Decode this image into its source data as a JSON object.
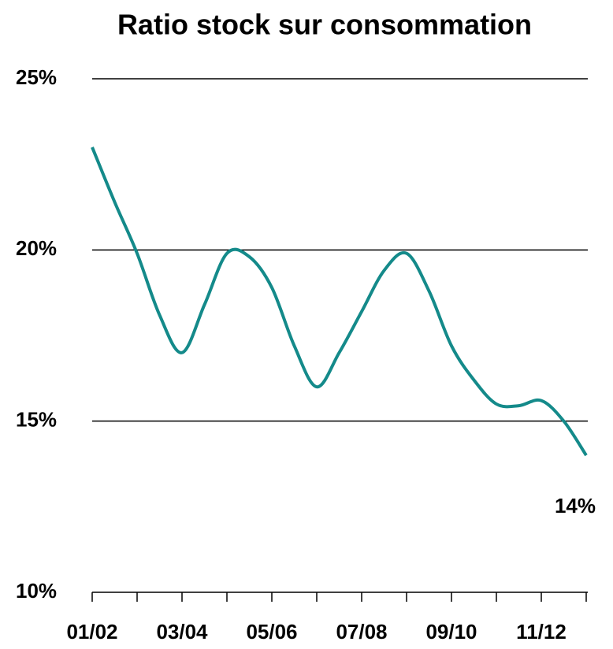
{
  "chart_data": {
    "type": "line",
    "title": "Ratio stock sur consommation",
    "categories": [
      "01/02",
      null,
      null,
      null,
      "03/04",
      null,
      null,
      null,
      "05/06",
      null,
      null,
      null,
      "07/08",
      null,
      null,
      null,
      "09/10",
      null,
      null,
      null,
      "11/12",
      null,
      null
    ],
    "series": [
      {
        "name": "Ratio stock sur consommation",
        "color": "#148a8a",
        "values": [
          23.0,
          21.4,
          19.9,
          18.1,
          17.0,
          18.4,
          19.9,
          19.8,
          18.9,
          17.2,
          16.0,
          17.0,
          18.2,
          19.4,
          19.9,
          18.8,
          17.2,
          16.2,
          15.5,
          15.45,
          15.6,
          15.0,
          14.0
        ],
        "value_labels": [
          null,
          null,
          null,
          null,
          null,
          null,
          null,
          null,
          null,
          null,
          null,
          null,
          null,
          null,
          null,
          null,
          null,
          null,
          null,
          null,
          null,
          null,
          "14%"
        ]
      }
    ],
    "ylim": [
      10,
      25
    ],
    "yticks": [
      {
        "value": 10,
        "label": "10%"
      },
      {
        "value": 15,
        "label": "15%"
      },
      {
        "value": 20,
        "label": "20%"
      },
      {
        "value": 25,
        "label": "25%"
      }
    ],
    "grid": true
  }
}
